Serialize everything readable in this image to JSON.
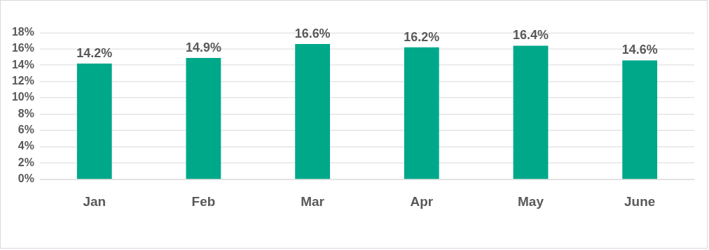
{
  "chart_data": {
    "type": "bar",
    "categories": [
      "Jan",
      "Feb",
      "Mar",
      "Apr",
      "May",
      "June"
    ],
    "values": [
      14.2,
      14.9,
      16.6,
      16.2,
      16.4,
      14.6
    ],
    "value_labels": [
      "14.2%",
      "14.9%",
      "16.6%",
      "16.2%",
      "16.4%",
      "14.6%"
    ],
    "color": "#00a88a",
    "ylim": [
      0,
      18
    ],
    "yticks": [
      {
        "value": 0,
        "label": "0%"
      },
      {
        "value": 2,
        "label": "2%"
      },
      {
        "value": 4,
        "label": "4%"
      },
      {
        "value": 6,
        "label": "6%"
      },
      {
        "value": 8,
        "label": "8%"
      },
      {
        "value": 10,
        "label": "10%"
      },
      {
        "value": 12,
        "label": "12%"
      },
      {
        "value": 14,
        "label": "14%"
      },
      {
        "value": 16,
        "label": "16%"
      },
      {
        "value": 18,
        "label": "18%"
      }
    ],
    "grid": "y",
    "legend": false
  }
}
